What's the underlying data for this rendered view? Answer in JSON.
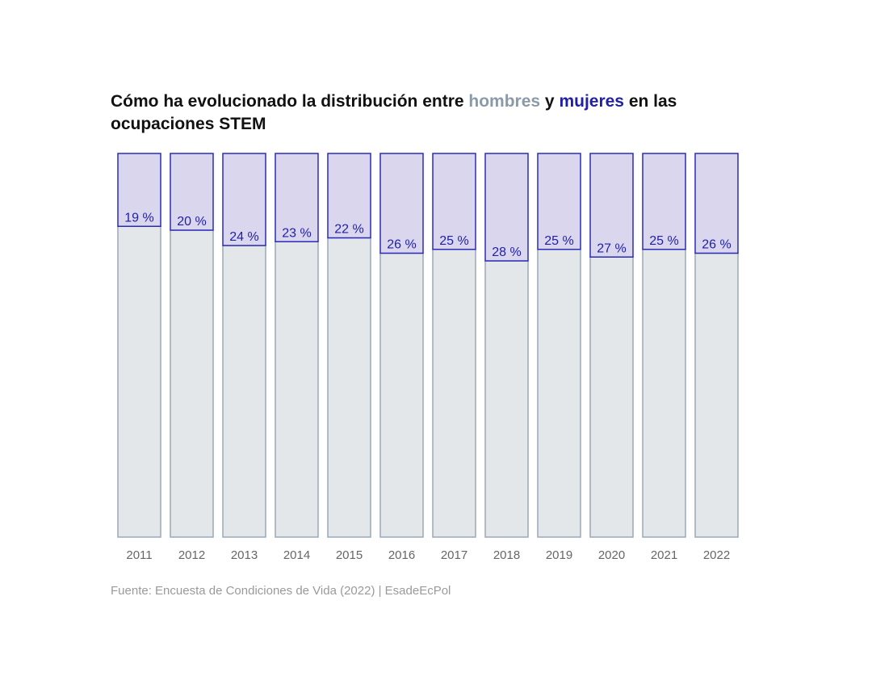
{
  "title": {
    "part1": "Cómo ha evolucionado la distribución entre ",
    "men": "hombres",
    "part2": " y ",
    "women": "mujeres",
    "part3": " en las ocupaciones STEM"
  },
  "source": "Fuente: Encuesta de Condiciones de Vida (2022) | EsadeEcPol",
  "colors": {
    "women_fill": "#dad6ee",
    "women_stroke": "#2b2bb8",
    "men_fill": "#e3e7ea",
    "men_stroke": "#9aa9b8",
    "label": "#1f1fa8",
    "tick": "#666666"
  },
  "chart_data": {
    "type": "bar",
    "stacked": true,
    "title": "Cómo ha evolucionado la distribución entre hombres y mujeres en las ocupaciones STEM",
    "categories": [
      "2011",
      "2012",
      "2013",
      "2014",
      "2015",
      "2016",
      "2017",
      "2018",
      "2019",
      "2020",
      "2021",
      "2022"
    ],
    "series": [
      {
        "name": "mujeres",
        "values": [
          19,
          20,
          24,
          23,
          22,
          26,
          25,
          28,
          25,
          27,
          25,
          26
        ]
      },
      {
        "name": "hombres",
        "values": [
          81,
          80,
          76,
          77,
          78,
          74,
          75,
          72,
          75,
          73,
          75,
          74
        ]
      }
    ],
    "labels": [
      "19 %",
      "20 %",
      "24 %",
      "23 %",
      "22 %",
      "26 %",
      "25 %",
      "28 %",
      "25 %",
      "27 %",
      "25 %",
      "26 %"
    ],
    "ylim": [
      0,
      100
    ],
    "xlabel": "",
    "ylabel": ""
  }
}
